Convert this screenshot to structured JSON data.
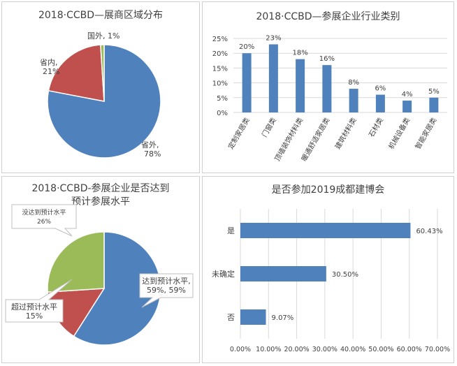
{
  "colors": {
    "blue": "#4f81bd",
    "red": "#c0504d",
    "green": "#9bbb59",
    "grid": "#d9d9d9",
    "text": "#404040"
  },
  "chart_data": [
    {
      "type": "pie",
      "title": "2018·CCBD—展商区域分布",
      "slices": [
        {
          "label": "国外",
          "value": 1,
          "pct_label": "1%",
          "color": "#9bbb59"
        },
        {
          "label": "省内",
          "value": 21,
          "pct_label": "21%",
          "color": "#c0504d"
        },
        {
          "label": "省外",
          "value": 78,
          "pct_label": "78%",
          "color": "#4f81bd"
        }
      ]
    },
    {
      "type": "bar",
      "title": "2018·CCBD—参展企业行业类别",
      "categories": [
        "定制家居类",
        "门窗类",
        "顶墙装饰材料类",
        "暖通舒适家居类",
        "建筑材料类",
        "石材类",
        "机械设备类",
        "智能家居类"
      ],
      "values": [
        20,
        23,
        18,
        16,
        8,
        6,
        4,
        5
      ],
      "value_labels": [
        "20%",
        "23%",
        "18%",
        "16%",
        "8%",
        "6%",
        "4%",
        "5%"
      ],
      "yticks": [
        "0%",
        "5%",
        "10%",
        "15%",
        "20%",
        "25%"
      ],
      "ylim": [
        0,
        25
      ]
    },
    {
      "type": "pie",
      "title": "2018·CCBD-参展企业是否达到预计参展水平",
      "title_lines": [
        "2018·CCBD-参展企业是否达到",
        "预计参展水平"
      ],
      "slices": [
        {
          "label": "达到预计水平",
          "value": 59,
          "pct_label": "59%, 59%",
          "color": "#4f81bd"
        },
        {
          "label": "超过预计水平",
          "value": 15,
          "pct_label": "15%",
          "color": "#c0504d"
        },
        {
          "label": "没达到预计水平",
          "value": 26,
          "pct_label": "26%",
          "color": "#9bbb59"
        }
      ]
    },
    {
      "type": "bar",
      "orientation": "horizontal",
      "title": "是否参加2019成都建博会",
      "categories": [
        "是",
        "未确定",
        "否"
      ],
      "values": [
        60.43,
        30.5,
        9.07
      ],
      "value_labels": [
        "60.43%",
        "30.50%",
        "9.07%"
      ],
      "xticks": [
        "0.00%",
        "10.00%",
        "20.00%",
        "30.00%",
        "40.00%",
        "50.00%",
        "60.00%",
        "70.00%"
      ],
      "xlim": [
        0,
        70
      ]
    }
  ]
}
